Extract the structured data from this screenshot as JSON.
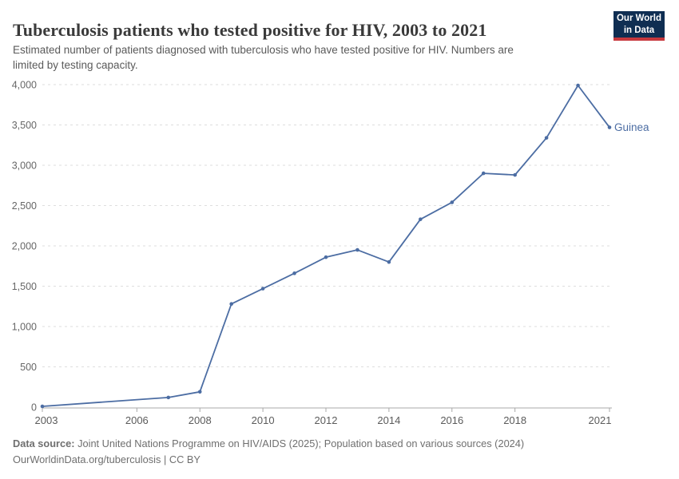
{
  "header": {
    "title": "Tuberculosis patients who tested positive for HIV, 2003 to 2021",
    "subtitle_line1": "Estimated number of patients diagnosed with tuberculosis who have tested positive for HIV. Numbers are",
    "subtitle_line2": "limited by testing capacity.",
    "logo": {
      "line1": "Our World",
      "line2": "in Data",
      "bg_color": "#0f2e52",
      "accent_color": "#c7383d"
    }
  },
  "chart_data": {
    "type": "line",
    "title": "Tuberculosis patients who tested positive for HIV, 2003 to 2021",
    "subtitle": "Estimated number of patients diagnosed with tuberculosis who have tested positive for HIV. Numbers are limited by testing capacity.",
    "xlabel": "",
    "ylabel": "",
    "xlim": [
      2003,
      2021
    ],
    "ylim": [
      0,
      4000
    ],
    "grid": "horizontal-dashed",
    "legend_position": "end-of-line-label",
    "x_ticks": [
      2003,
      2006,
      2008,
      2010,
      2012,
      2014,
      2016,
      2018,
      2021
    ],
    "y_ticks": [
      0,
      500,
      1000,
      1500,
      2000,
      2500,
      3000,
      3500,
      4000
    ],
    "y_tick_labels": [
      "0",
      "500",
      "1,000",
      "1,500",
      "2,000",
      "2,500",
      "3,000",
      "3,500",
      "4,000"
    ],
    "series": [
      {
        "name": "Guinea",
        "color": "#4c6da3",
        "x": [
          2003,
          2007,
          2008,
          2009,
          2010,
          2011,
          2012,
          2013,
          2014,
          2015,
          2016,
          2017,
          2018,
          2019,
          2020,
          2021
        ],
        "values": [
          10,
          120,
          190,
          1280,
          1470,
          1660,
          1860,
          1950,
          1800,
          2330,
          2540,
          2900,
          2880,
          3340,
          3990,
          3470
        ]
      }
    ],
    "colors": {
      "gridline": "#dedede",
      "axis": "#a8a8a8",
      "tick_label": "#5b5b5b",
      "y_label": "#666666"
    }
  },
  "footer": {
    "datasource_label": "Data source:",
    "datasource_text": " Joint United Nations Programme on HIV/AIDS (2025); Population based on various sources (2024)",
    "link_line": "OurWorldinData.org/tuberculosis | CC BY"
  }
}
